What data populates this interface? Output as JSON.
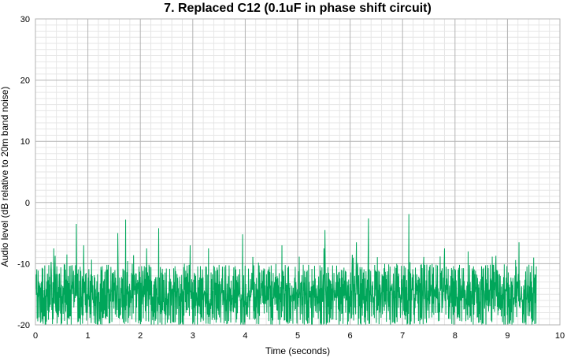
{
  "chart_data": {
    "type": "line",
    "title": "7. Replaced C12 (0.1uF in phase shift circuit)",
    "xlabel": "Time (seconds)",
    "ylabel": "Audio level (dB relative to 20m band noise)",
    "xlim": [
      0,
      10
    ],
    "ylim": [
      -20,
      30
    ],
    "x_ticks": [
      "0",
      "1",
      "2",
      "3",
      "4",
      "5",
      "6",
      "7",
      "8",
      "9",
      "10"
    ],
    "y_ticks": [
      "-20",
      "-10",
      "0",
      "10",
      "20",
      "30"
    ],
    "grid": true,
    "series": [
      {
        "color": "#00a65a",
        "x_start": 0.0,
        "x_end": 9.55,
        "typical_range": [
          -20,
          -10
        ],
        "peaks": [
          {
            "x": 0.35,
            "y": -7.5
          },
          {
            "x": 0.6,
            "y": -8.5
          },
          {
            "x": 0.78,
            "y": -3.5
          },
          {
            "x": 0.92,
            "y": -7.0
          },
          {
            "x": 1.57,
            "y": -5.0
          },
          {
            "x": 1.72,
            "y": -2.8
          },
          {
            "x": 2.12,
            "y": -7.5
          },
          {
            "x": 2.35,
            "y": -4.2
          },
          {
            "x": 2.95,
            "y": -7.0
          },
          {
            "x": 3.3,
            "y": -7.5
          },
          {
            "x": 3.95,
            "y": -5.2
          },
          {
            "x": 4.7,
            "y": -7.0
          },
          {
            "x": 5.5,
            "y": -7.5
          },
          {
            "x": 5.52,
            "y": -4.5
          },
          {
            "x": 6.12,
            "y": -6.5
          },
          {
            "x": 6.35,
            "y": -2.6
          },
          {
            "x": 7.12,
            "y": -1.9
          },
          {
            "x": 7.8,
            "y": -7.5
          },
          {
            "x": 8.25,
            "y": -8.0
          },
          {
            "x": 9.22,
            "y": -6.5
          },
          {
            "x": 9.5,
            "y": -9.0
          }
        ]
      }
    ]
  }
}
